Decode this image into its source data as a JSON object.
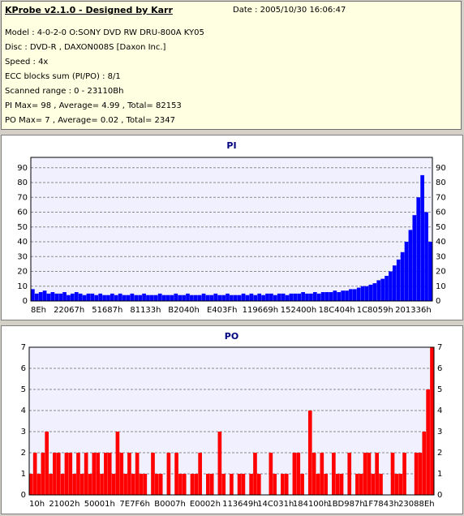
{
  "info": {
    "title": "KProbe v2.1.0 - Designed by Karr",
    "date": "Date : 2005/10/30 16:06:47",
    "lines": [
      "Model : 4-0-2-0 O:SONY     DVD RW DRU-800A  KY05",
      "Disc : DVD-R , DAXON008S [Daxon Inc.]",
      "Speed : 4x",
      "ECC blocks sum (PI/PO) : 8/1",
      "Scanned range : 0 - 23110Bh",
      "PI Max= 98 , Average= 4.99 , Total= 82153",
      "PO Max= 7 , Average= 0.02 , Total= 2347"
    ]
  },
  "chart_data": [
    {
      "type": "bar",
      "title": "PI",
      "ylim": [
        0,
        97
      ],
      "yticks": [
        0,
        10,
        20,
        30,
        40,
        50,
        60,
        70,
        80,
        90
      ],
      "xticks": [
        "8Eh",
        "22067h",
        "51687h",
        "81133h",
        "B2040h",
        "E403Fh",
        "119669h",
        "152400h",
        "18C404h",
        "1C8059h",
        "201336h"
      ],
      "grid": true,
      "color": "#0000ff",
      "values": [
        8,
        5,
        6,
        7,
        5,
        6,
        5,
        5,
        6,
        4,
        5,
        6,
        5,
        4,
        5,
        5,
        4,
        5,
        4,
        4,
        5,
        4,
        5,
        4,
        4,
        5,
        4,
        4,
        5,
        4,
        4,
        4,
        5,
        4,
        4,
        4,
        5,
        4,
        4,
        5,
        4,
        4,
        4,
        5,
        4,
        4,
        5,
        4,
        4,
        5,
        4,
        4,
        4,
        5,
        4,
        5,
        4,
        5,
        4,
        5,
        5,
        4,
        5,
        5,
        4,
        5,
        5,
        5,
        6,
        5,
        5,
        6,
        5,
        6,
        6,
        6,
        7,
        6,
        7,
        7,
        8,
        8,
        9,
        10,
        10,
        11,
        12,
        14,
        15,
        17,
        20,
        24,
        28,
        33,
        40,
        48,
        58,
        70,
        85,
        60,
        40
      ]
    },
    {
      "type": "bar",
      "title": "PO",
      "ylim": [
        0,
        7
      ],
      "yticks": [
        0,
        1,
        2,
        3,
        4,
        5,
        6,
        7
      ],
      "xticks": [
        "10h",
        "21002h",
        "50001h",
        "7E7F6h",
        "B0007h",
        "E0002h",
        "113649h",
        "14C031h",
        "184100h",
        "1BD987h",
        "1F7843h",
        "23088Eh"
      ],
      "grid": true,
      "color": "#ff0000",
      "values": [
        1,
        2,
        1,
        2,
        3,
        1,
        2,
        2,
        1,
        2,
        2,
        1,
        2,
        1,
        2,
        1,
        2,
        2,
        1,
        2,
        2,
        1,
        3,
        2,
        1,
        2,
        1,
        2,
        1,
        1,
        0,
        2,
        1,
        1,
        0,
        2,
        0,
        2,
        1,
        1,
        0,
        1,
        1,
        2,
        0,
        1,
        1,
        0,
        3,
        1,
        0,
        1,
        0,
        1,
        1,
        0,
        1,
        2,
        1,
        0,
        0,
        2,
        1,
        0,
        1,
        1,
        0,
        2,
        2,
        1,
        0,
        4,
        2,
        1,
        2,
        1,
        0,
        2,
        1,
        1,
        0,
        2,
        0,
        1,
        1,
        2,
        2,
        1,
        2,
        1,
        0,
        0,
        2,
        1,
        1,
        2,
        0,
        0,
        2,
        2,
        3,
        5,
        7
      ]
    }
  ]
}
